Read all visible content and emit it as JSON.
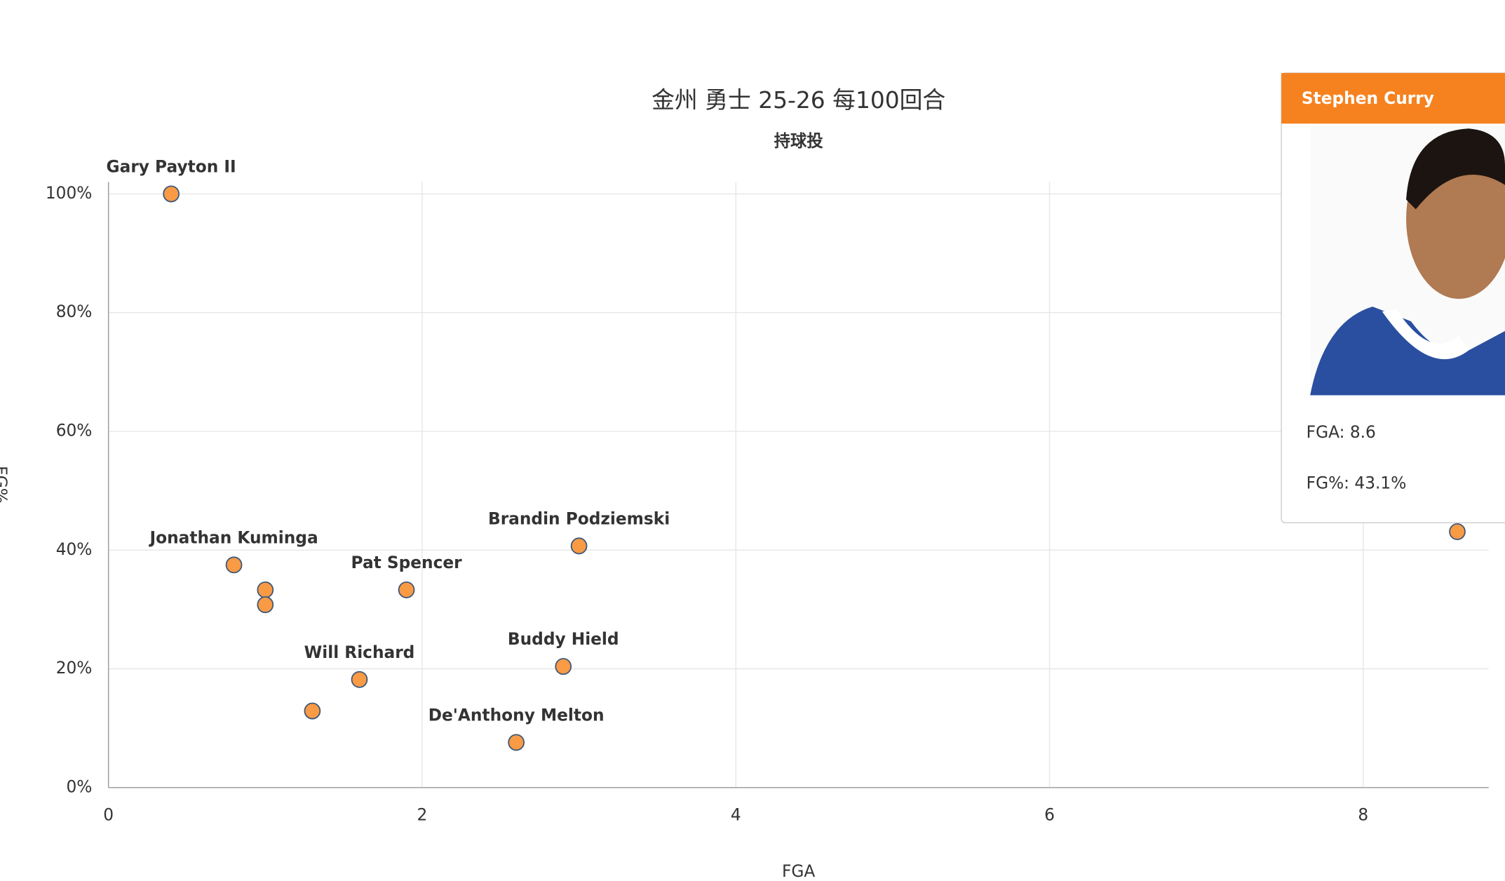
{
  "chart_data": {
    "type": "scatter",
    "title": "金州 勇士 25-26  每100回合",
    "subtitle": "持球投",
    "x_label": "FGA",
    "y_label": "FG%",
    "x": [
      0.4,
      0.8,
      1.0,
      1.0,
      1.9,
      3.0,
      1.6,
      1.3,
      2.9,
      2.6,
      8.6
    ],
    "values": [
      100,
      37.5,
      33.3,
      30.8,
      33.3,
      40.7,
      18.2,
      12.9,
      20.4,
      7.6,
      43.1
    ],
    "labels": [
      "Gary Payton II",
      "Jonathan Kuminga",
      null,
      null,
      "Pat Spencer",
      "Brandin Podziemski",
      "Will Richard",
      null,
      "Buddy Hield",
      "De'Anthony Melton",
      null
    ],
    "color": "#f99a45",
    "xlim": [
      0,
      8.8
    ],
    "ylim": [
      0,
      102
    ],
    "xticks": [
      0,
      2,
      4,
      6,
      8
    ],
    "yticks": [
      {
        "value": 0,
        "label": "0%"
      },
      {
        "value": 20,
        "label": "20%"
      },
      {
        "value": 40,
        "label": "40%"
      },
      {
        "value": 60,
        "label": "60%"
      },
      {
        "value": 80,
        "label": "80%"
      },
      {
        "value": 100,
        "label": "100%"
      }
    ],
    "grid": true,
    "tooltip": {
      "name": "Stephen Curry",
      "lines": [
        "FGA: 8.6",
        "FG%: 43.1%"
      ]
    }
  }
}
